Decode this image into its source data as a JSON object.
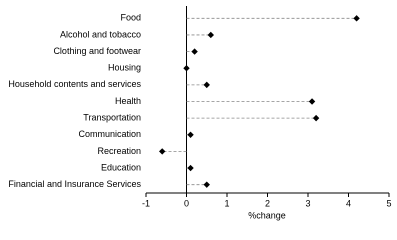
{
  "chart_data": {
    "type": "dot",
    "orientation": "horizontal",
    "categories": [
      "Food",
      "Alcohol and tobacco",
      "Clothing and footwear",
      "Housing",
      "Household contents and services",
      "Health",
      "Transportation",
      "Communication",
      "Recreation",
      "Education",
      "Financial and Insurance Services"
    ],
    "values": [
      4.2,
      0.6,
      0.2,
      0,
      0.5,
      3.1,
      3.2,
      0.1,
      -0.6,
      0.1,
      0.5
    ],
    "color": "#000000",
    "x_label": "%change",
    "xlim": [
      -1,
      5
    ],
    "xticks": [
      -1,
      0,
      1,
      2,
      3,
      4,
      5
    ]
  }
}
